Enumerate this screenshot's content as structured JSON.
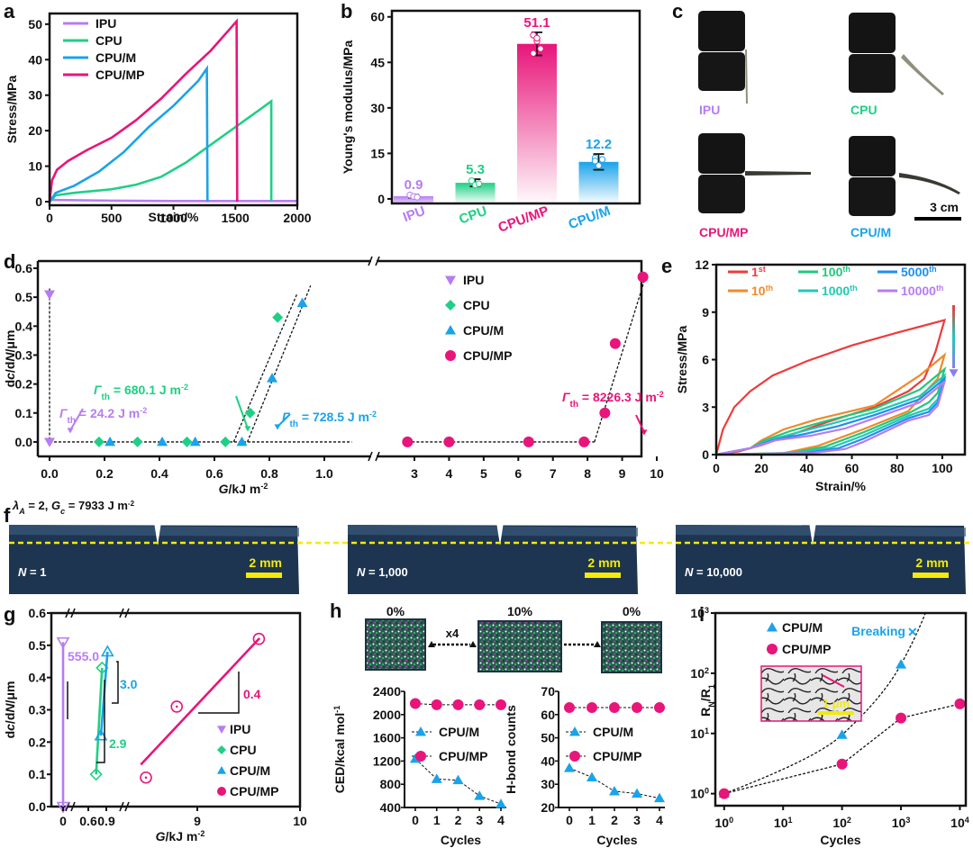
{
  "colors": {
    "IPU": "#b77cf2",
    "CPU": "#1fcf85",
    "CPU/M": "#1aa3ea",
    "CPU/MP": "#e8157a",
    "cycle_1": "#ee3b3b",
    "cycle_10": "#ee8a2b",
    "cycle_100": "#20c87e",
    "cycle_1000": "#20c9b5",
    "cycle_5000": "#1f8ff0",
    "cycle_10000": "#b77cf2",
    "scale_yellow": "#f5ea0a",
    "sample_bg": "#1d3550"
  },
  "panel_labels": {
    "a": "a",
    "b": "b",
    "c": "c",
    "d": "d",
    "e": "e",
    "f": "f",
    "g": "g",
    "h": "h",
    "i": "i"
  },
  "chart_data": [
    {
      "id": "a",
      "type": "line",
      "title": "",
      "xlabel": "Strain/%",
      "ylabel": "Stress/MPa",
      "xlim": [
        0,
        2000
      ],
      "ylim": [
        -1,
        53
      ],
      "xticks": [
        0,
        500,
        1000,
        1500,
        2000
      ],
      "yticks": [
        0,
        10,
        20,
        30,
        40,
        50
      ],
      "legend": "top-left",
      "series": [
        {
          "name": "IPU",
          "points": [
            [
              0,
              0.5
            ],
            [
              500,
              0.3
            ],
            [
              1000,
              0.2
            ],
            [
              2000,
              0.2
            ]
          ]
        },
        {
          "name": "CPU",
          "points": [
            [
              0,
              0
            ],
            [
              50,
              1.8
            ],
            [
              200,
              2.5
            ],
            [
              500,
              3.5
            ],
            [
              700,
              4.8
            ],
            [
              900,
              7
            ],
            [
              1100,
              11
            ],
            [
              1300,
              16
            ],
            [
              1500,
              21
            ],
            [
              1700,
              26
            ],
            [
              1790,
              28.3
            ],
            [
              1790,
              0
            ]
          ]
        },
        {
          "name": "CPU/M",
          "points": [
            [
              0,
              0
            ],
            [
              50,
              2.5
            ],
            [
              200,
              4.5
            ],
            [
              400,
              8.5
            ],
            [
              600,
              14
            ],
            [
              800,
              21
            ],
            [
              1000,
              27
            ],
            [
              1200,
              34
            ],
            [
              1270,
              37.5
            ],
            [
              1275,
              0
            ]
          ]
        },
        {
          "name": "CPU/MP",
          "points": [
            [
              0,
              0
            ],
            [
              20,
              6
            ],
            [
              60,
              9
            ],
            [
              150,
              11.5
            ],
            [
              300,
              14.5
            ],
            [
              500,
              18
            ],
            [
              700,
              23
            ],
            [
              900,
              29
            ],
            [
              1100,
              36
            ],
            [
              1300,
              42.5
            ],
            [
              1510,
              50.8
            ],
            [
              1515,
              0
            ]
          ]
        }
      ]
    },
    {
      "id": "b",
      "type": "bar",
      "ylabel": "Young's modulus/MPa",
      "ylim": [
        -1.5,
        62
      ],
      "yticks": [
        0,
        15,
        30,
        45,
        60
      ],
      "categories": [
        "IPU",
        "CPU",
        "CPU/MP",
        "CPU/M"
      ],
      "values": [
        0.9,
        5.3,
        51.1,
        12.2
      ],
      "value_labels": [
        "0.9",
        "5.3",
        "51.1",
        "12.2"
      ],
      "errors": [
        0.5,
        1.2,
        3.8,
        2.6
      ],
      "points": [
        [
          1.3,
          0.8,
          0.6
        ],
        [
          6.0,
          4.6,
          5.0
        ],
        [
          54.0,
          52.0,
          49.5,
          48.0,
          53.0
        ],
        [
          13.5,
          11.0,
          13.0,
          12.5
        ]
      ]
    },
    {
      "id": "d",
      "type": "scatter",
      "xlabel": "G/kJ m⁻²",
      "ylabel": "dc/dN/μm",
      "ylim": [
        -0.05,
        0.6
      ],
      "yticks": [
        0.0,
        0.1,
        0.2,
        0.3,
        0.4,
        0.5,
        0.6
      ],
      "x_break": {
        "left": [
          -0.05,
          1.1
        ],
        "right": [
          2.3,
          10.3
        ]
      },
      "xticks_left": [
        0.0,
        0.2,
        0.4,
        0.6,
        0.8,
        1.0
      ],
      "xticks_right": [
        3,
        4,
        5,
        6,
        7,
        8,
        9,
        10
      ],
      "legend": "top-right",
      "series": [
        {
          "name": "IPU",
          "marker": "triangle-down",
          "points": [
            [
              0.0,
              0.51
            ],
            [
              0.0,
              0.0
            ]
          ]
        },
        {
          "name": "CPU",
          "marker": "diamond",
          "points": [
            [
              0.18,
              0
            ],
            [
              0.32,
              0
            ],
            [
              0.5,
              0
            ],
            [
              0.64,
              0
            ],
            [
              0.73,
              0.1
            ],
            [
              0.83,
              0.43
            ]
          ]
        },
        {
          "name": "CPU/M",
          "marker": "triangle-up",
          "points": [
            [
              0.22,
              0
            ],
            [
              0.41,
              0
            ],
            [
              0.53,
              0
            ],
            [
              0.7,
              0
            ],
            [
              0.81,
              0.22
            ],
            [
              0.92,
              0.48
            ]
          ]
        },
        {
          "name": "CPU/MP",
          "marker": "circle",
          "points": [
            [
              2.8,
              0
            ],
            [
              4.0,
              0
            ],
            [
              6.3,
              0
            ],
            [
              7.9,
              0
            ],
            [
              8.5,
              0.1
            ],
            [
              8.8,
              0.34
            ],
            [
              9.6,
              0.57
            ]
          ]
        }
      ],
      "annotations": [
        {
          "text": "Γth = 24.2 J m⁻²",
          "label": "24.2 J m",
          "series": "IPU"
        },
        {
          "text": "Γth = 680.1 J m⁻²",
          "label": "680.1 J m",
          "series": "CPU"
        },
        {
          "text": "Γth = 728.5 J m⁻²",
          "label": "728.5 J m",
          "series": "CPU/M"
        },
        {
          "text": "Γth = 8226.3 J m⁻²",
          "label": "8226.3 J m",
          "series": "CPU/MP"
        }
      ]
    },
    {
      "id": "e",
      "type": "line",
      "xlabel": "Strain/%",
      "ylabel": "Stress/MPa",
      "xlim": [
        0,
        110
      ],
      "ylim": [
        0,
        12
      ],
      "xticks": [
        0,
        20,
        40,
        60,
        80,
        100
      ],
      "yticks": [
        0,
        3,
        6,
        9,
        12
      ],
      "legend": "top",
      "series": [
        {
          "name": "1st",
          "sup": "st",
          "base": "1",
          "peak": 8.5
        },
        {
          "name": "10th",
          "sup": "th",
          "base": "10",
          "peak": 6.3
        },
        {
          "name": "100th",
          "sup": "th",
          "base": "100",
          "peak": 5.4
        },
        {
          "name": "1000th",
          "sup": "th",
          "base": "1000",
          "peak": 5.0
        },
        {
          "name": "5000th",
          "sup": "th",
          "base": "5000",
          "peak": 4.8
        },
        {
          "name": "10000th",
          "sup": "th",
          "base": "10000",
          "peak": 4.6
        }
      ]
    },
    {
      "id": "g",
      "type": "line",
      "xlabel": "G/kJ m⁻²",
      "ylabel": "dc/dN/μm",
      "ylim": [
        0,
        0.6
      ],
      "yticks": [
        0.0,
        0.1,
        0.2,
        0.3,
        0.4,
        0.5,
        0.6
      ],
      "xtick_labels": [
        "0",
        "0.6",
        "0.9",
        "9",
        "10"
      ],
      "legend": "bottom-right",
      "series": [
        {
          "name": "IPU",
          "slope": "555.0",
          "points": [
            [
              0.0,
              0.51
            ],
            [
              0.0,
              0.0
            ]
          ]
        },
        {
          "name": "CPU",
          "slope": "2.9",
          "points": [
            [
              0.73,
              0.1
            ],
            [
              0.83,
              0.43
            ]
          ]
        },
        {
          "name": "CPU/M",
          "slope": "3.0",
          "points": [
            [
              0.81,
              0.22
            ],
            [
              0.92,
              0.48
            ]
          ]
        },
        {
          "name": "CPU/MP",
          "slope": "0.4",
          "points": [
            [
              8.5,
              0.09
            ],
            [
              8.8,
              0.31
            ],
            [
              9.6,
              0.52
            ]
          ]
        }
      ]
    },
    {
      "id": "h1",
      "type": "line",
      "xlabel": "Cycles",
      "ylabel": "CED/kcal mol⁻¹",
      "ylim": [
        400,
        2400
      ],
      "yticks": [
        400,
        800,
        1200,
        1600,
        2000,
        2400
      ],
      "x": [
        0,
        1,
        2,
        3,
        4
      ],
      "series": [
        {
          "name": "CPU/M",
          "values": [
            1240,
            890,
            870,
            600,
            460
          ]
        },
        {
          "name": "CPU/MP",
          "values": [
            2190,
            2170,
            2170,
            2170,
            2170
          ]
        }
      ]
    },
    {
      "id": "h2",
      "type": "line",
      "xlabel": "Cycles",
      "ylabel": "H-bond counts",
      "ylim": [
        20,
        70
      ],
      "yticks": [
        20,
        30,
        40,
        50,
        60,
        70
      ],
      "x": [
        0,
        1,
        2,
        3,
        4
      ],
      "series": [
        {
          "name": "CPU/M",
          "values": [
            37,
            33,
            27,
            26,
            24
          ]
        },
        {
          "name": "CPU/MP",
          "values": [
            63,
            63,
            63,
            63,
            63
          ]
        }
      ]
    },
    {
      "id": "i",
      "type": "scatter",
      "xlabel": "Cycles",
      "ylabel": "RN/R1",
      "xscale": "log",
      "yscale": "log",
      "xlim": [
        1,
        10000
      ],
      "ylim": [
        1,
        1000
      ],
      "xticks": [
        "10⁰",
        "10¹",
        "10²",
        "10³",
        "10⁴"
      ],
      "yticks": [
        "10⁰",
        "10¹",
        "10²",
        "10³"
      ],
      "legend": "top-left",
      "series": [
        {
          "name": "CPU/M",
          "points": [
            [
              1,
              1
            ],
            [
              100,
              9.5
            ],
            [
              1000,
              140
            ]
          ]
        },
        {
          "name": "CPU/MP",
          "points": [
            [
              1,
              1
            ],
            [
              100,
              3.1
            ],
            [
              1000,
              18
            ],
            [
              10000,
              31
            ]
          ]
        }
      ],
      "annotation": "Breaking",
      "inset_scale": "1 μm"
    }
  ],
  "panel_c": {
    "labels": [
      "IPU",
      "CPU",
      "CPU/MP",
      "CPU/M"
    ],
    "scale": "3 cm"
  },
  "panel_f": {
    "header": "λA = 2, Gc = 7933 J m⁻²",
    "header_lambda": "λ",
    "header_sub_a": "A",
    "header_mid": " = 2, ",
    "header_g": "G",
    "header_sub_c": "c",
    "header_tail": " = 7933 J m",
    "header_sup": "-2",
    "frames": [
      {
        "n_label": "N",
        "n_value": " = 1",
        "scale": "2 mm"
      },
      {
        "n_label": "N",
        "n_value": " = 1,000",
        "scale": "2 mm"
      },
      {
        "n_label": "N",
        "n_value": " = 10,000",
        "scale": "2 mm"
      }
    ]
  },
  "panel_h_images": {
    "labels": [
      "0%",
      "10%",
      "0%"
    ],
    "repeat": "x4"
  }
}
